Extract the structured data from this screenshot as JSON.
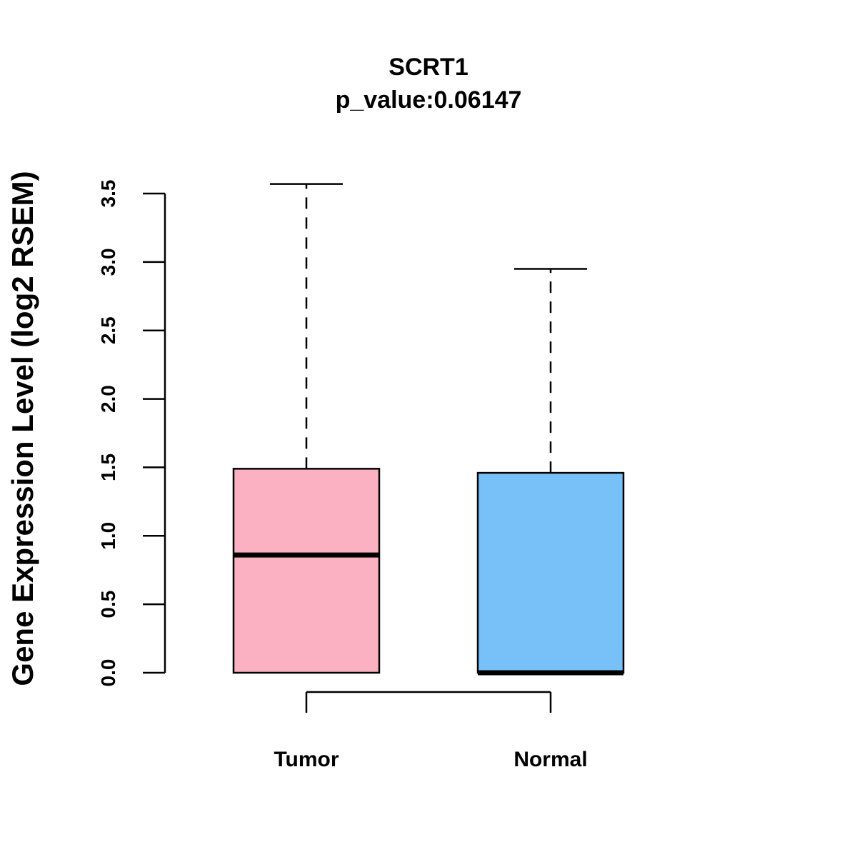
{
  "chart_data": {
    "type": "boxplot",
    "title": "SCRT1",
    "subtitle": "p_value:0.06147",
    "xlabel": "",
    "ylabel": "Gene Expression Level (log2 RSEM)",
    "ylim": [
      0,
      3.5
    ],
    "yticks": [
      "0.0",
      "0.5",
      "1.0",
      "1.5",
      "2.0",
      "2.5",
      "3.0",
      "3.5"
    ],
    "grid": false,
    "categories": [
      "Tumor",
      "Normal"
    ],
    "boxes": [
      {
        "category": "Tumor",
        "min": 0.0,
        "q1": 0.0,
        "median": 0.86,
        "q3": 1.49,
        "max": 3.57,
        "color": "#FBB1C2"
      },
      {
        "category": "Normal",
        "min": 0.0,
        "q1": 0.0,
        "median": 0.0,
        "q3": 1.46,
        "max": 2.95,
        "color": "#77C1F8"
      }
    ],
    "comparison_bracket": [
      "Tumor",
      "Normal"
    ]
  }
}
